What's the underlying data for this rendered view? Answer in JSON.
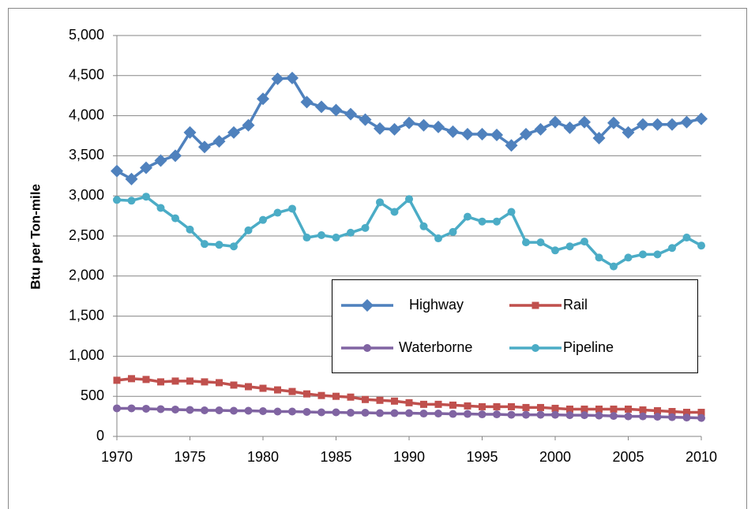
{
  "chart_data": {
    "type": "line",
    "y_label": "Btu per Ton-mile",
    "x": [
      1970,
      1971,
      1972,
      1973,
      1974,
      1975,
      1976,
      1977,
      1978,
      1979,
      1980,
      1981,
      1982,
      1983,
      1984,
      1985,
      1986,
      1987,
      1988,
      1989,
      1990,
      1991,
      1992,
      1993,
      1994,
      1995,
      1996,
      1997,
      1998,
      1999,
      2000,
      2001,
      2002,
      2003,
      2004,
      2005,
      2006,
      2007,
      2008,
      2009,
      2010
    ],
    "series": [
      {
        "name": "Highway",
        "color": "#4f81bd",
        "marker": "diamond",
        "values": [
          3310,
          3210,
          3350,
          3440,
          3500,
          3790,
          3610,
          3680,
          3790,
          3880,
          4210,
          4460,
          4470,
          4170,
          4110,
          4070,
          4020,
          3950,
          3840,
          3830,
          3910,
          3880,
          3860,
          3800,
          3770,
          3770,
          3760,
          3630,
          3770,
          3830,
          3920,
          3850,
          3920,
          3720,
          3910,
          3790,
          3890,
          3890,
          3890,
          3920,
          3960
        ]
      },
      {
        "name": "Rail",
        "color": "#c0504d",
        "marker": "square",
        "values": [
          700,
          720,
          710,
          680,
          690,
          690,
          680,
          670,
          640,
          620,
          600,
          580,
          560,
          530,
          510,
          500,
          490,
          460,
          450,
          440,
          420,
          400,
          400,
          390,
          380,
          370,
          370,
          370,
          360,
          360,
          350,
          340,
          340,
          340,
          340,
          340,
          330,
          320,
          310,
          300,
          300
        ]
      },
      {
        "name": "Waterborne",
        "color": "#8064a2",
        "marker": "circle",
        "values": [
          350,
          350,
          345,
          340,
          335,
          330,
          325,
          325,
          320,
          320,
          315,
          310,
          310,
          305,
          300,
          300,
          295,
          295,
          290,
          290,
          290,
          285,
          285,
          280,
          280,
          275,
          275,
          270,
          270,
          270,
          270,
          265,
          265,
          260,
          255,
          250,
          250,
          245,
          240,
          235,
          230
        ]
      },
      {
        "name": "Pipeline",
        "color": "#4bacc6",
        "marker": "circle",
        "values": [
          2950,
          2940,
          2990,
          2850,
          2720,
          2580,
          2400,
          2390,
          2370,
          2570,
          2700,
          2790,
          2840,
          2480,
          2510,
          2480,
          2540,
          2600,
          2920,
          2800,
          2960,
          2620,
          2470,
          2550,
          2740,
          2680,
          2680,
          2800,
          2420,
          2420,
          2320,
          2370,
          2430,
          2230,
          2120,
          2230,
          2270,
          2270,
          2350,
          2480,
          2380
        ]
      }
    ],
    "xlim": [
      1970,
      2010
    ],
    "xticks": [
      1970,
      1975,
      1980,
      1985,
      1990,
      1995,
      2000,
      2005,
      2010
    ],
    "ylim": [
      0,
      5000
    ],
    "yticks": [
      0,
      500,
      {
        "value": 1000,
        "label": "1,000"
      },
      {
        "value": 1500,
        "label": "1,500"
      },
      {
        "value": 2000,
        "label": "2,000"
      },
      {
        "value": 2500,
        "label": "2,500"
      },
      {
        "value": 3000,
        "label": "3,000"
      },
      {
        "value": 3500,
        "label": "3,500"
      },
      {
        "value": 4000,
        "label": "4,000"
      },
      {
        "value": 4500,
        "label": "4,500"
      },
      {
        "value": 5000,
        "label": "5,000"
      }
    ],
    "grid": true
  }
}
